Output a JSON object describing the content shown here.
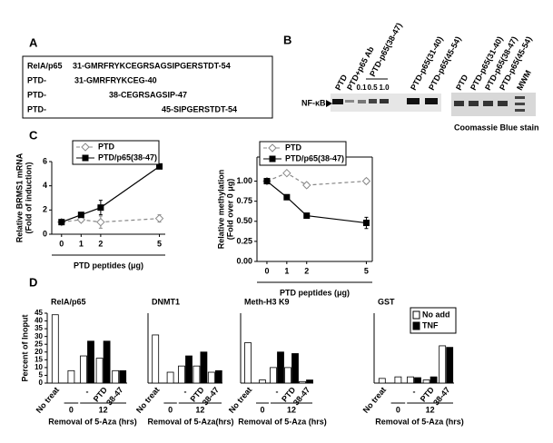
{
  "panel_labels": [
    "A",
    "B",
    "C",
    "D"
  ],
  "panel_a": {
    "rows": [
      [
        "RelA/p65",
        "31-GMRFRYKCEGRSAGSIPGERSTDT-54"
      ],
      [
        "PTD-",
        "31-GMRFRYKCEG-40"
      ],
      [
        "PTD-",
        "38-CEGRSAGSIP-47"
      ],
      [
        "PTD-",
        "45-SIPGERSTDT-54"
      ]
    ]
  },
  "panel_b": {
    "gel_left": {
      "lanes": [
        "PTD",
        "PTD+p65 Ab",
        "PTD-p65(38-47)",
        "PTD-p65(31-40)",
        "PTD-p65(45-54)"
      ],
      "doses": [
        "0.1",
        "0.5",
        "1.0"
      ],
      "band_label": "NF-κB"
    },
    "gel_right": {
      "lanes": [
        "PTD",
        "PTD-p65(31-40)",
        "PTD-p65(38-47)",
        "PTD-p65(45-54)",
        "MWM"
      ],
      "caption": "Coomassie Blue stain"
    }
  },
  "chart_data": [
    {
      "type": "line",
      "ylabel": [
        "Relative BRMS1 mRNA",
        "(Fold of induction)"
      ],
      "xlabel": "PTD peptides (μg)",
      "x": [
        0,
        1,
        2,
        5
      ],
      "xlim": [
        -0.5,
        5.3
      ],
      "xticks": [
        0,
        1,
        2,
        5
      ],
      "ylim": [
        0,
        6
      ],
      "yticks": [
        0,
        2,
        4,
        6
      ],
      "series": [
        {
          "name": "PTD",
          "color": "#888888",
          "marker": "diamond",
          "line_style": "dashed",
          "values": [
            1.0,
            1.2,
            1.0,
            1.3
          ],
          "errors": [
            0.1,
            0.2,
            0.5,
            0.3
          ]
        },
        {
          "name": "PTD/p65(38-47)",
          "color": "#000000",
          "marker": "square",
          "line_style": "solid",
          "values": [
            1.0,
            1.6,
            2.2,
            5.6
          ],
          "errors": [
            0.1,
            0.2,
            0.6,
            0.2
          ]
        }
      ]
    },
    {
      "type": "line",
      "ylabel": [
        "Relative methylation",
        "(Fold over 0 μg)"
      ],
      "xlabel": "PTD peptides (μg)",
      "x": [
        0,
        1,
        2,
        5
      ],
      "xlim": [
        -0.5,
        5.3
      ],
      "xticks": [
        0,
        1,
        2,
        5
      ],
      "ylim": [
        0,
        1.3
      ],
      "yticks": [
        {
          "value": 0,
          "label": "0.00"
        },
        {
          "value": 0.25,
          "label": "0.25"
        },
        {
          "value": 0.5,
          "label": "0.50"
        },
        {
          "value": 0.75,
          "label": "0.75"
        },
        {
          "value": 1.0,
          "label": "1.00"
        }
      ],
      "series": [
        {
          "name": "PTD",
          "color": "#888888",
          "marker": "diamond",
          "line_style": "dashed",
          "values": [
            1.0,
            1.1,
            0.95,
            1.0
          ],
          "errors": [
            0.02,
            0.02,
            0.03,
            0.03
          ]
        },
        {
          "name": "PTD/p65(38-47)",
          "color": "#000000",
          "marker": "square",
          "line_style": "solid",
          "values": [
            1.0,
            0.8,
            0.57,
            0.48
          ],
          "errors": [
            0.02,
            0.02,
            0.03,
            0.07
          ]
        }
      ]
    },
    {
      "type": "bar",
      "title": "RelA/p65",
      "ylabel": "Percent of Inoput",
      "categories": [
        "No treat",
        null,
        "-",
        "PTD",
        "38-47"
      ],
      "group_labels": [
        "0",
        "12"
      ],
      "xlabel": "Removal of 5-Aza (hrs)",
      "ylim": [
        0,
        45
      ],
      "yticks": [
        0,
        5,
        10,
        15,
        20,
        25,
        30,
        35,
        40,
        45
      ],
      "series": [
        {
          "color": "#ffffff",
          "values": [
            44,
            8,
            17.5,
            16,
            8
          ]
        },
        {
          "color": "#000000",
          "values": [
            null,
            null,
            27,
            27,
            8
          ]
        }
      ]
    },
    {
      "type": "bar",
      "title": "DNMT1",
      "categories": [
        "No treat",
        null,
        "-",
        "PTD",
        "38-47"
      ],
      "group_labels": [
        "0",
        "12"
      ],
      "xlabel": "Removal of 5-Aza(hrs)",
      "ylim": [
        0,
        45
      ],
      "series": [
        {
          "color": "#ffffff",
          "values": [
            31,
            7,
            11,
            11,
            7
          ]
        },
        {
          "color": "#000000",
          "values": [
            null,
            null,
            17.5,
            20,
            8
          ]
        }
      ]
    },
    {
      "type": "bar",
      "title": "Meth-H3 K9",
      "categories": [
        "No treat",
        null,
        "-",
        "PTD",
        "38-47"
      ],
      "group_labels": [
        "0",
        "12"
      ],
      "xlabel": "Removal of 5-Aza (hrs)",
      "ylim": [
        0,
        45
      ],
      "series": [
        {
          "color": "#ffffff",
          "values": [
            26,
            2,
            10,
            10,
            1
          ]
        },
        {
          "color": "#000000",
          "values": [
            null,
            null,
            20,
            19,
            2
          ]
        }
      ]
    },
    {
      "type": "bar",
      "title": "GST",
      "categories": [
        "No treat",
        null,
        "-",
        "PTD",
        "38-47"
      ],
      "group_labels": [
        "0",
        "12"
      ],
      "xlabel": "Removal of 5-Aza (hrs)",
      "ylim": [
        0,
        45
      ],
      "legend": "top-right",
      "series": [
        {
          "name": "No add",
          "color": "#ffffff",
          "values": [
            3,
            4,
            4,
            2,
            24
          ]
        },
        {
          "name": "TNF",
          "color": "#000000",
          "values": [
            null,
            null,
            3.5,
            4,
            23
          ]
        }
      ]
    }
  ]
}
